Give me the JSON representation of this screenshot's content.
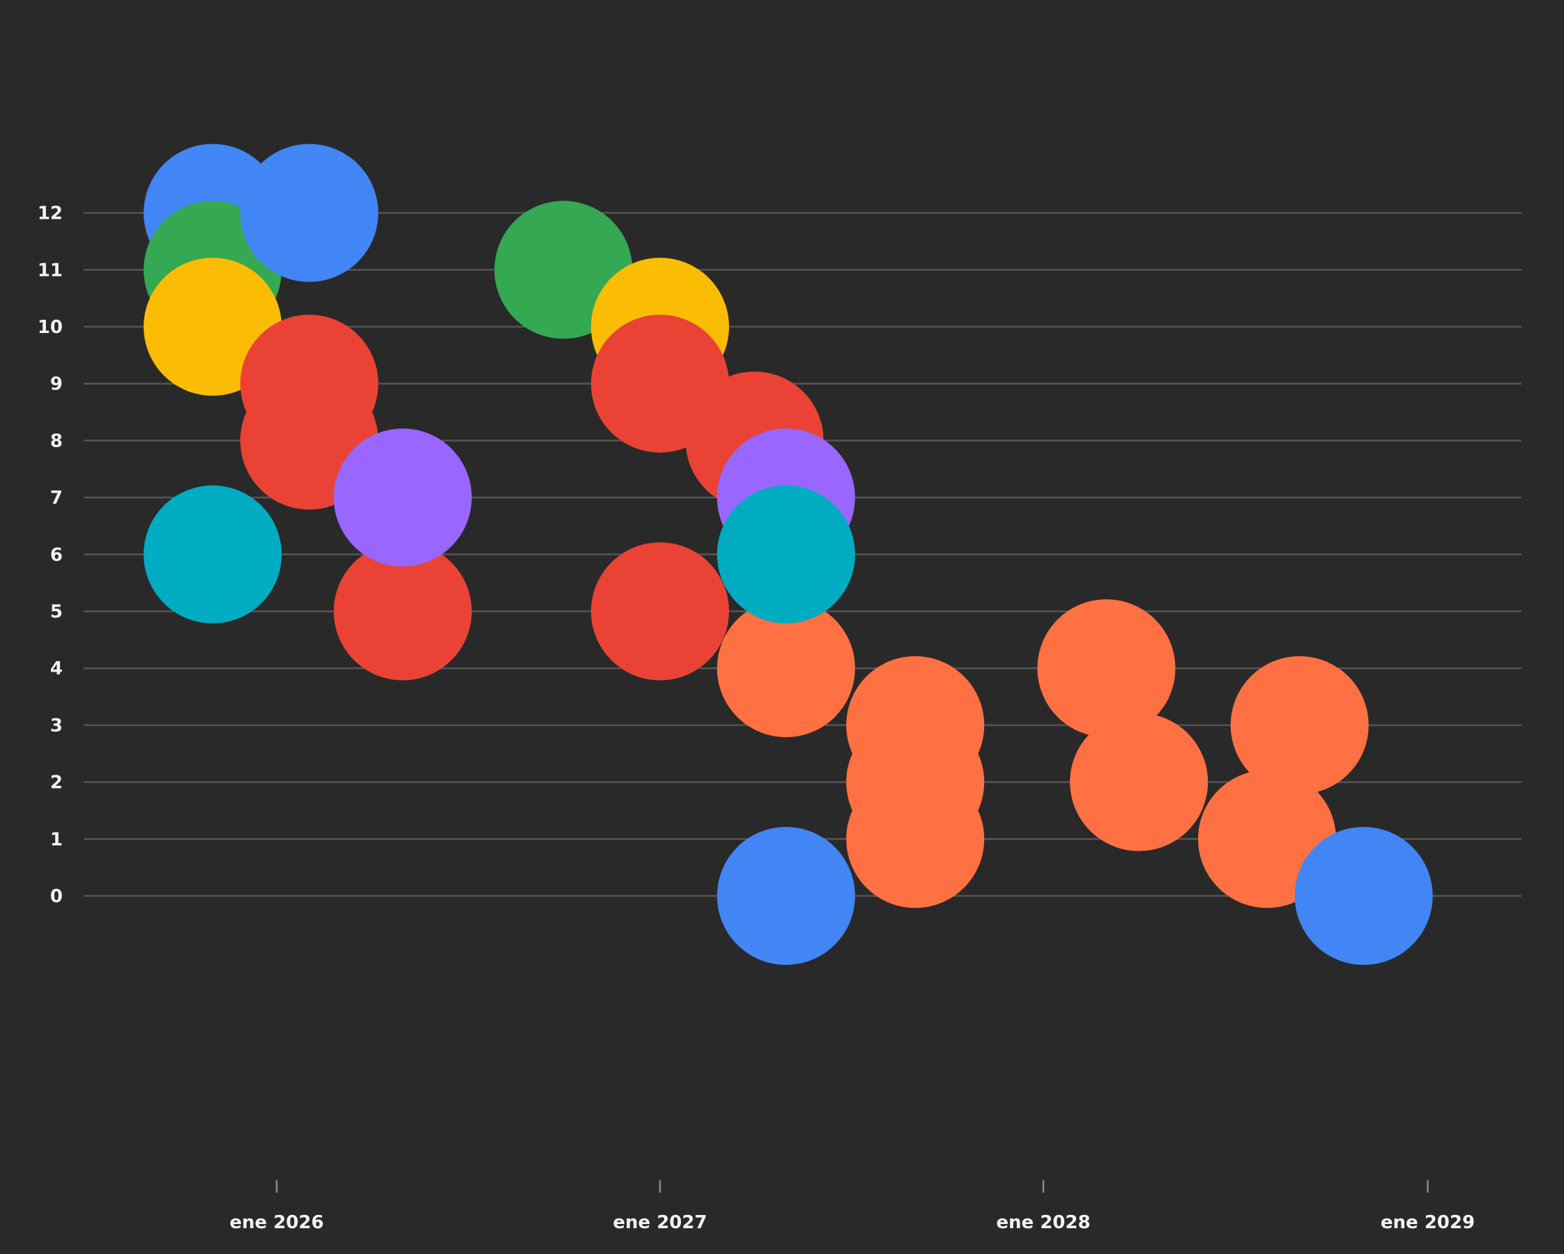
{
  "chart_data": {
    "type": "scatter",
    "title": "",
    "xlabel": "",
    "ylabel": "",
    "grid": true,
    "x_axis": {
      "type": "date",
      "range": [
        "2025-08-06",
        "2029-03-23"
      ],
      "ticks": [
        {
          "date": "2026-01-01",
          "label": "ene 2026"
        },
        {
          "date": "2027-01-01",
          "label": "ene 2027"
        },
        {
          "date": "2028-01-01",
          "label": "ene 2028"
        },
        {
          "date": "2029-01-01",
          "label": "ene 2029"
        }
      ]
    },
    "y_axis": {
      "ticks": [
        0,
        1,
        2,
        3,
        4,
        5,
        6,
        7,
        8,
        9,
        10,
        11,
        12
      ],
      "range": [
        -4.8,
        14
      ]
    },
    "colors": {
      "blue": "#4285f4",
      "green": "#34a853",
      "yellow": "#fbbc04",
      "red": "#ea4335",
      "purple": "#9966ff",
      "teal": "#00acc1",
      "orange": "#ff7043"
    },
    "points": [
      {
        "date": "2025-11-01",
        "y": 12,
        "color": "blue"
      },
      {
        "date": "2025-11-01",
        "y": 6,
        "color": "teal"
      },
      {
        "date": "2025-11-01",
        "y": 11,
        "color": "green"
      },
      {
        "date": "2025-11-01",
        "y": 10,
        "color": "yellow"
      },
      {
        "date": "2026-02-01",
        "y": 12,
        "color": "blue"
      },
      {
        "date": "2026-02-01",
        "y": 9,
        "color": "red"
      },
      {
        "date": "2026-02-01",
        "y": 8,
        "color": "red"
      },
      {
        "date": "2026-05-01",
        "y": 5,
        "color": "red"
      },
      {
        "date": "2026-05-01",
        "y": 7,
        "color": "purple"
      },
      {
        "date": "2026-10-01",
        "y": 11,
        "color": "green"
      },
      {
        "date": "2027-01-01",
        "y": 10,
        "color": "yellow"
      },
      {
        "date": "2027-01-01",
        "y": 9,
        "color": "red"
      },
      {
        "date": "2027-01-01",
        "y": 5,
        "color": "red"
      },
      {
        "date": "2027-04-01",
        "y": 8,
        "color": "red"
      },
      {
        "date": "2027-05-01",
        "y": 0,
        "color": "blue"
      },
      {
        "date": "2027-05-01",
        "y": 7,
        "color": "purple"
      },
      {
        "date": "2027-05-01",
        "y": 4,
        "color": "orange"
      },
      {
        "date": "2027-05-01",
        "y": 6,
        "color": "teal"
      },
      {
        "date": "2027-09-01",
        "y": 3,
        "color": "orange"
      },
      {
        "date": "2027-09-01",
        "y": 2,
        "color": "orange"
      },
      {
        "date": "2027-09-01",
        "y": 1,
        "color": "orange"
      },
      {
        "date": "2028-03-01",
        "y": 4,
        "color": "orange"
      },
      {
        "date": "2028-04-01",
        "y": 2,
        "color": "orange"
      },
      {
        "date": "2028-08-01",
        "y": 1,
        "color": "orange"
      },
      {
        "date": "2028-09-01",
        "y": 3,
        "color": "orange"
      },
      {
        "date": "2028-11-01",
        "y": 0,
        "color": "blue"
      }
    ]
  }
}
